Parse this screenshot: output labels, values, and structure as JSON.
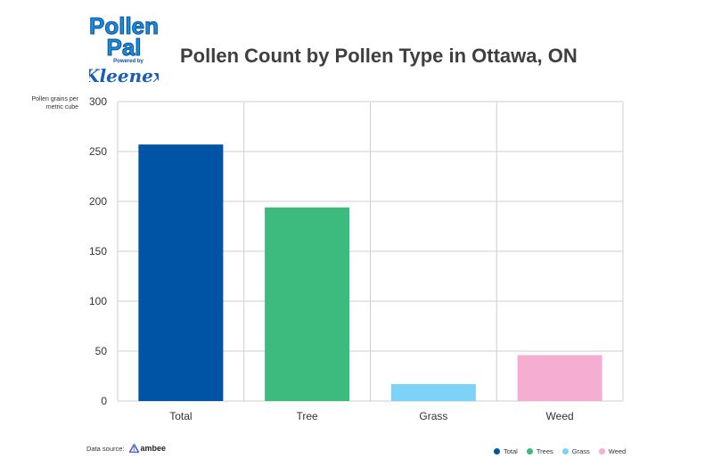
{
  "logo": {
    "line1": "Pollen",
    "line2": "Pal",
    "powered": "Powered by",
    "brand": "Kleenex"
  },
  "source": {
    "label": "Data source:",
    "name": "ambee"
  },
  "chart_data": {
    "type": "bar",
    "title": "Pollen Count by Pollen Type in Ottawa, ON",
    "ylabel": "Pollen grains per metric cube",
    "xlabel": "",
    "categories": [
      "Total",
      "Tree",
      "Grass",
      "Weed"
    ],
    "values": [
      257,
      194,
      17,
      46
    ],
    "colors": [
      "#0054a6",
      "#3dba7e",
      "#7dd3f7",
      "#f5aed1"
    ],
    "ylim": [
      0,
      300
    ],
    "yticks": [
      0,
      50,
      100,
      150,
      200,
      250,
      300
    ],
    "grid": true,
    "legend": [
      {
        "label": "Total",
        "color": "#0054a6"
      },
      {
        "label": "Trees",
        "color": "#3dba7e"
      },
      {
        "label": "Grass",
        "color": "#7dd3f7"
      },
      {
        "label": "Weed",
        "color": "#f5aed1"
      }
    ],
    "legend_position": "bottom-right"
  }
}
